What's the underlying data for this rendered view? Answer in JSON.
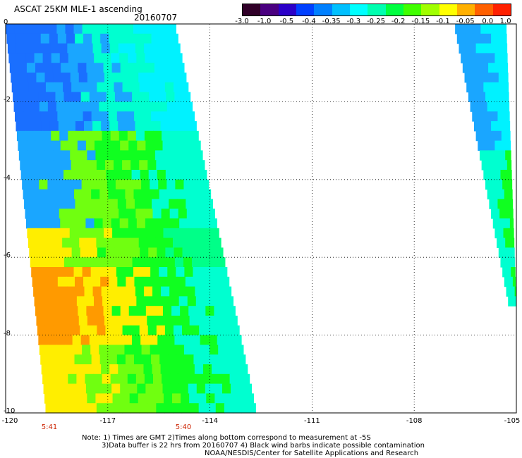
{
  "header": {
    "title": "ASCAT 25KM MLE-1 ascending",
    "date": "20160707"
  },
  "colorbar": {
    "colors": [
      "#300028",
      "#4a0080",
      "#2b00c8",
      "#0040ff",
      "#0080ff",
      "#00c0ff",
      "#00ffff",
      "#00ffb0",
      "#00ff40",
      "#40ff00",
      "#a0ff00",
      "#ffff00",
      "#ffb000",
      "#ff6000",
      "#ff2000"
    ],
    "tick_labels": [
      "-3.0",
      "-1.0",
      "-0.5",
      "-0.4",
      "-0.35",
      "-0.3",
      "-0.25",
      "-0.2",
      "-0.15",
      "-0.1",
      "-0.05",
      "0.0",
      "1.0"
    ]
  },
  "axes": {
    "lat_labels": [
      "0",
      "-2",
      "-4",
      "-6",
      "-8",
      "-10"
    ],
    "lon_labels": [
      "-120",
      "-117",
      "-114",
      "-111",
      "-108",
      "-105"
    ],
    "time_labels": [
      "5:41",
      "5:40"
    ]
  },
  "map": {
    "extent": {
      "lon_min": -120,
      "lon_max": -105,
      "lat_min": -10,
      "lat_max": 0
    },
    "palette": {
      "blue": "#1a6fff",
      "skyblue": "#1aa6ff",
      "cyan": "#00f2ff",
      "aqua": "#00ffd0",
      "seagreen": "#00ff88",
      "green": "#10ff20",
      "lime": "#70ff10",
      "yellowgreen": "#b8ff00",
      "yellow": "#ffee00",
      "orange": "#ff9a00"
    },
    "swaths": [
      {
        "name": "main-swath",
        "left_lon": [
          -120,
          -118.8
        ],
        "right_lon": [
          -115,
          -112.6
        ],
        "bands": [
          {
            "lat": [
              0,
              -2.5
            ],
            "colors": [
              "blue",
              "skyblue",
              "aqua",
              "cyan"
            ]
          },
          {
            "lat": [
              -2.5,
              -5
            ],
            "colors": [
              "skyblue",
              "lime",
              "green",
              "aqua"
            ]
          },
          {
            "lat": [
              -5,
              -6
            ],
            "colors": [
              "yellow",
              "lime",
              "green",
              "seagreen"
            ]
          },
          {
            "lat": [
              -6,
              -8
            ],
            "colors": [
              "orange",
              "yellow",
              "green",
              "aqua"
            ]
          },
          {
            "lat": [
              -8,
              -10
            ],
            "colors": [
              "yellow",
              "lime",
              "green",
              "aqua"
            ]
          }
        ]
      },
      {
        "name": "east-swath",
        "left_lon": [
          -106.8,
          -105.2
        ],
        "right_lon": [
          -105.3,
          -105.0
        ],
        "lat_extent": [
          0,
          -7.2
        ],
        "bands": [
          {
            "lat": [
              0,
              -3
            ],
            "colors": [
              "skyblue",
              "cyan"
            ]
          },
          {
            "lat": [
              -3,
              -7.2
            ],
            "colors": [
              "aqua",
              "green"
            ]
          }
        ]
      }
    ]
  },
  "footer": {
    "line1": "Note: 1) Times are GMT 2)Times along bottom correspond to measurement at -5S",
    "line2": "3)Data buffer is 22 hrs from 20160707 4) Black wind barbs indicate possible contamination",
    "line3": "NOAA/NESDIS/Center for Satellite Applications and Research"
  }
}
